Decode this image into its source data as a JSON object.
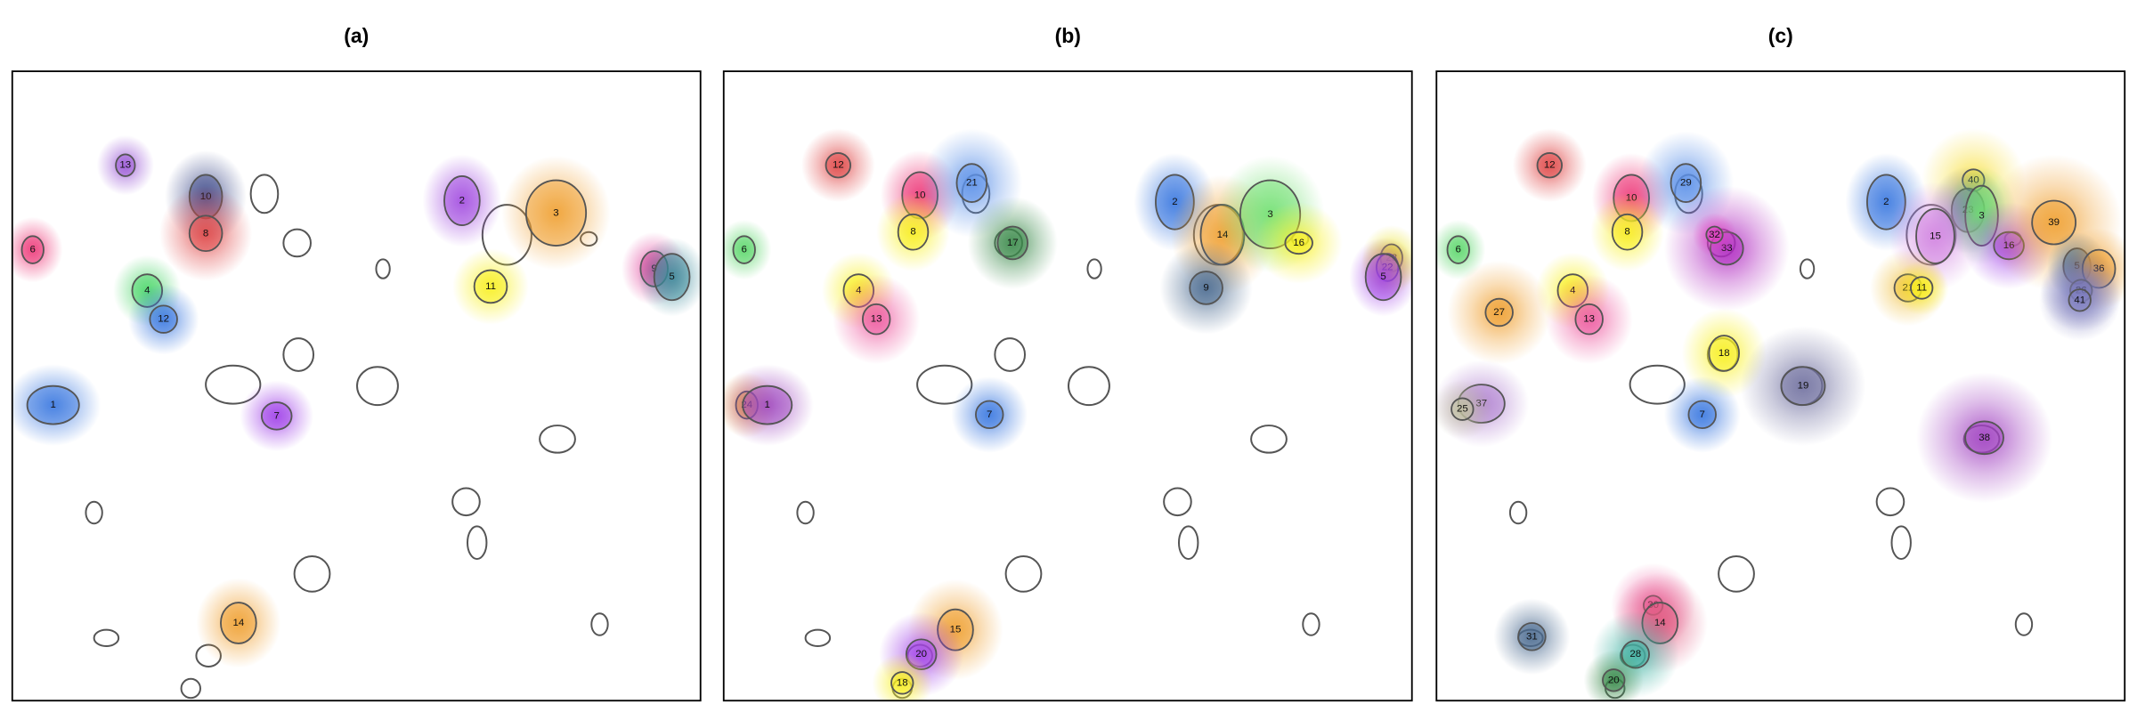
{
  "panels": [
    {
      "label": "(a)",
      "blobs": [
        "13",
        "10",
        "8",
        "2",
        "3",
        "6",
        "4",
        "12",
        "11",
        "9",
        "5",
        "1",
        "7",
        "14"
      ]
    },
    {
      "label": "(b)",
      "blobs": [
        "12",
        "10",
        "21",
        "8",
        "17",
        "2",
        "14",
        "3",
        "16",
        "6",
        "4",
        "13",
        "9",
        "23",
        "22",
        "5",
        "24",
        "1",
        "7",
        "15",
        "20",
        "18"
      ]
    },
    {
      "label": "(c)",
      "blobs": [
        "12",
        "10",
        "29",
        "8",
        "33",
        "32",
        "2",
        "40",
        "23",
        "3",
        "15",
        "16",
        "39",
        "6",
        "21",
        "11",
        "4",
        "13",
        "27",
        "5",
        "36",
        "26",
        "41",
        "18",
        "19",
        "37",
        "25",
        "7",
        "38",
        "30",
        "14",
        "31",
        "28",
        "20"
      ]
    }
  ]
}
